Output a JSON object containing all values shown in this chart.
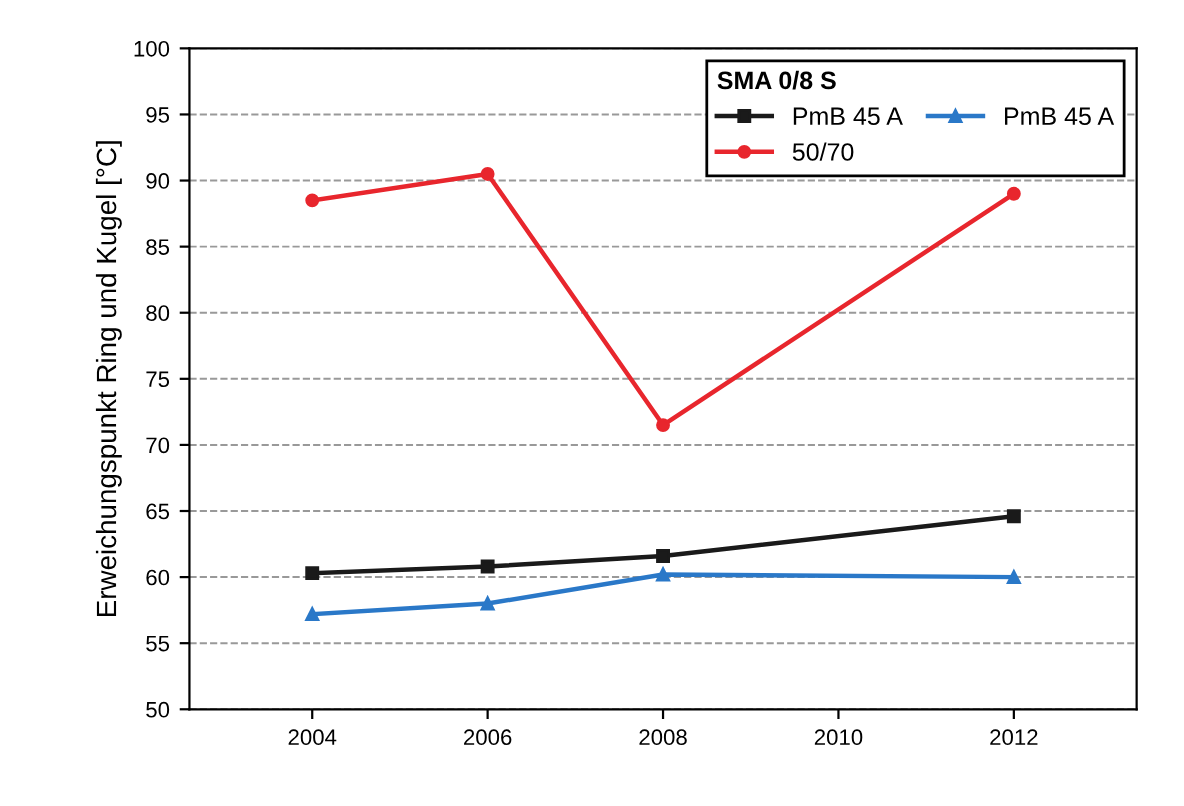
{
  "chart_data": {
    "type": "line",
    "ylabel": "Erweichungspunkt Ring und Kugel [°C]",
    "legend_title": "SMA 0/8 S",
    "legend": "top right",
    "grid": "y",
    "line_style": "solid",
    "xlim": [
      2002.6,
      2013.4
    ],
    "xticks": [
      2004,
      2006,
      2008,
      2010,
      2012
    ],
    "ylim": [
      50,
      100
    ],
    "yticks": [
      50,
      55,
      60,
      65,
      70,
      75,
      80,
      85,
      90,
      95,
      100
    ],
    "series": [
      {
        "name": "PmB 45 A",
        "color": "#1a1a1a",
        "marker": "square",
        "x": [
          2004,
          2006,
          2008,
          2012
        ],
        "values": [
          60.3,
          60.8,
          61.6,
          64.6
        ]
      },
      {
        "name": "50/70",
        "color": "#e8262d",
        "marker": "circle",
        "x": [
          2004,
          2006,
          2008,
          2012
        ],
        "values": [
          88.5,
          90.5,
          71.5,
          89.0
        ]
      },
      {
        "name": "PmB 45 A",
        "color": "#2a78c8",
        "marker": "triangle",
        "x": [
          2004,
          2006,
          2008,
          2012
        ],
        "values": [
          57.2,
          58.0,
          60.2,
          60.0
        ]
      }
    ]
  }
}
